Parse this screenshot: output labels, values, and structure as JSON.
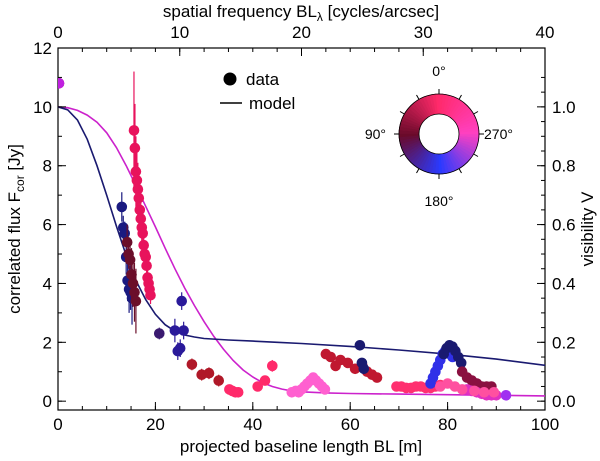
{
  "chart_data": {
    "type": "scatter",
    "x_bottom": {
      "label": "projected baseline length BL [m]",
      "range": [
        0,
        100
      ],
      "ticks": [
        0,
        20,
        40,
        60,
        80,
        100
      ],
      "tick_labels": [
        "0",
        "20",
        "40",
        "60",
        "80",
        "100"
      ]
    },
    "x_top": {
      "label_main": "spatial frequency BL",
      "label_sub": "λ",
      "label_tail": " [cycles/arcsec]",
      "range": [
        0,
        40
      ],
      "ticks": [
        0,
        10,
        20,
        30,
        40
      ],
      "tick_labels": [
        "0",
        "10",
        "20",
        "30",
        "40"
      ]
    },
    "y_left": {
      "label_main": "correlated flux F",
      "label_sub": "cor",
      "label_tail": " [Jy]",
      "range": [
        -0.3,
        12
      ],
      "ticks": [
        0,
        2,
        4,
        6,
        8,
        10,
        12
      ],
      "tick_labels": [
        "0",
        "2",
        "4",
        "6",
        "8",
        "10",
        "12"
      ]
    },
    "y_right": {
      "label": "visibility V",
      "range": [
        -0.03,
        1.2
      ],
      "ticks": [
        0,
        0.2,
        0.4,
        0.6,
        0.8,
        1.0
      ],
      "tick_labels": [
        "0.0",
        "0.2",
        "0.4",
        "0.6",
        "0.8",
        "1.0"
      ]
    },
    "legend": {
      "position": "top-center",
      "items": [
        {
          "label": "data",
          "kind": "marker"
        },
        {
          "label": "model",
          "kind": "line"
        }
      ]
    },
    "wheel": {
      "labels": [
        {
          "text": "0°",
          "angle": 0
        },
        {
          "text": "90°",
          "angle": 90
        },
        {
          "text": "180°",
          "angle": 180
        },
        {
          "text": "270°",
          "angle": 270
        }
      ],
      "colors_by_quadrant": [
        "#ff2a6a",
        "#6a0a2a",
        "#2a3aff",
        "#ff40c0"
      ]
    },
    "model_curves": [
      {
        "name": "model-magenta",
        "color": "#cc22cc",
        "x": [
          0,
          2,
          4,
          6,
          8,
          10,
          12,
          14,
          16,
          18,
          20,
          22,
          24,
          26,
          28,
          30,
          32,
          34,
          36,
          38,
          40,
          42,
          44,
          46,
          48,
          50,
          55,
          60,
          70,
          80,
          90,
          100
        ],
        "y": [
          10.0,
          9.97,
          9.88,
          9.72,
          9.48,
          9.12,
          8.62,
          8.0,
          7.32,
          6.62,
          5.92,
          5.2,
          4.5,
          3.85,
          3.25,
          2.7,
          2.2,
          1.76,
          1.38,
          1.06,
          0.82,
          0.63,
          0.5,
          0.41,
          0.35,
          0.32,
          0.28,
          0.26,
          0.24,
          0.22,
          0.2,
          0.18
        ]
      },
      {
        "name": "model-navy",
        "color": "#1a1a70",
        "x": [
          0,
          2,
          4,
          6,
          8,
          10,
          12,
          14,
          16,
          18,
          20,
          22,
          24,
          26,
          28,
          30,
          35,
          40,
          45,
          50,
          60,
          70,
          80,
          90,
          100
        ],
        "y": [
          10.0,
          9.9,
          9.55,
          8.9,
          8.0,
          7.0,
          5.95,
          4.95,
          4.1,
          3.45,
          2.95,
          2.6,
          2.38,
          2.25,
          2.18,
          2.13,
          2.08,
          2.04,
          2.0,
          1.96,
          1.86,
          1.74,
          1.6,
          1.43,
          1.22
        ]
      }
    ],
    "series": [
      {
        "name": "group-0",
        "color": "#9b1f5e",
        "x": [
          0.2
        ],
        "y": [
          10.8
        ],
        "err": [
          0
        ]
      },
      {
        "name": "group-1",
        "color": "#c020e0",
        "x": [
          0.2
        ],
        "y": [
          10.8
        ],
        "err": [
          0
        ]
      },
      {
        "name": "group-2",
        "color": "#1a1a80",
        "x": [
          13.1,
          13.4,
          13.7,
          14.0,
          14.3,
          14.6,
          14.9,
          15.2
        ],
        "y": [
          6.6,
          5.9,
          5.7,
          4.9,
          4.1,
          3.8,
          3.7,
          3.5
        ],
        "err": [
          0.5,
          0.4,
          0.4,
          0.6,
          0.7,
          0.8,
          0.6,
          0.9
        ]
      },
      {
        "name": "group-3",
        "color": "#6b0f2a",
        "x": [
          14.2,
          14.5,
          14.8,
          15.1,
          15.4,
          15.7,
          16.0
        ],
        "y": [
          5.4,
          5.0,
          4.8,
          4.3,
          4.0,
          3.7,
          3.4
        ],
        "err": [
          0.6,
          0.5,
          0.7,
          0.9,
          0.8,
          1.0,
          1.1
        ]
      },
      {
        "name": "group-4",
        "color": "#e8135c",
        "x": [
          15.6,
          15.8,
          16.0,
          16.2,
          16.4,
          16.6,
          16.8,
          17.0,
          17.2,
          17.4,
          17.6,
          17.8,
          18.0,
          18.2,
          18.4,
          18.6,
          18.8,
          19.0
        ],
        "y": [
          9.2,
          8.6,
          7.8,
          7.5,
          7.2,
          6.9,
          6.5,
          6.2,
          5.9,
          5.7,
          5.3,
          5.0,
          4.9,
          4.6,
          4.2,
          4.0,
          3.8,
          3.6
        ],
        "err": [
          2.0,
          1.5,
          1.2,
          1.0,
          0.9,
          0.8,
          0.6,
          0.6,
          0.5,
          0.5,
          0.4,
          0.4,
          0.4,
          0.3,
          0.3,
          0.3,
          0.3,
          0.3
        ]
      },
      {
        "name": "group-5",
        "color": "#2a1a9a",
        "x": [
          24.0,
          24.6,
          25.1,
          25.4,
          25.8
        ],
        "y": [
          2.4,
          1.7,
          1.8,
          3.4,
          2.4
        ],
        "err": [
          0.4,
          0.3,
          0.3,
          0.3,
          0.3
        ]
      },
      {
        "name": "group-6",
        "color": "#3a1a70",
        "x": [
          20.8
        ],
        "y": [
          2.3
        ],
        "err": [
          0.2
        ]
      },
      {
        "name": "group-7",
        "color": "#b01828",
        "x": [
          27.5,
          29.5,
          31.0,
          33.0
        ],
        "y": [
          1.25,
          0.9,
          0.95,
          0.7
        ],
        "err": [
          0.2,
          0.2,
          0.2,
          0.2
        ]
      },
      {
        "name": "group-8",
        "color": "#ff2a6a",
        "x": [
          35.2,
          35.8,
          36.4,
          37.0,
          44.0,
          42.5,
          41.0
        ],
        "y": [
          0.4,
          0.35,
          0.3,
          0.3,
          1.2,
          0.7,
          0.5
        ],
        "err": [
          0,
          0,
          0,
          0,
          0.2,
          0.1,
          0.1
        ]
      },
      {
        "name": "group-9",
        "color": "#ff60d0",
        "x": [
          48.0,
          48.8,
          49.4,
          50.0,
          50.6,
          51.2,
          51.8,
          52.4,
          53.0,
          53.6,
          54.2,
          54.8
        ],
        "y": [
          0.3,
          0.35,
          0.3,
          0.4,
          0.5,
          0.6,
          0.7,
          0.8,
          0.7,
          0.6,
          0.5,
          0.4
        ],
        "err": [
          0,
          0,
          0,
          0,
          0,
          0,
          0,
          0,
          0,
          0,
          0,
          0
        ]
      },
      {
        "name": "group-10",
        "color": "#c01830",
        "x": [
          55.0,
          56.0,
          57.0,
          58.0,
          59.5,
          61.0,
          62.5,
          63.5,
          64.5,
          65.5
        ],
        "y": [
          1.6,
          1.5,
          1.2,
          1.4,
          1.3,
          1.1,
          1.2,
          1.0,
          0.9,
          0.8
        ],
        "err": [
          0,
          0,
          0,
          0,
          0,
          0,
          0,
          0,
          0,
          0
        ]
      },
      {
        "name": "group-11",
        "color": "#1a1a70",
        "x": [
          62.0,
          62.4,
          62.8
        ],
        "y": [
          1.9,
          1.3,
          1.1
        ],
        "err": [
          0.1,
          0.1,
          0.1
        ]
      },
      {
        "name": "group-12",
        "color": "#ff3070",
        "x": [
          69.5,
          70.5,
          71.5,
          72.5,
          73.5,
          74.5,
          75.5,
          76.5,
          77.5,
          78.5
        ],
        "y": [
          0.5,
          0.5,
          0.45,
          0.45,
          0.5,
          0.5,
          0.45,
          0.45,
          0.5,
          0.55
        ],
        "err": [
          0,
          0,
          0,
          0,
          0,
          0,
          0,
          0,
          0,
          0
        ]
      },
      {
        "name": "group-13",
        "color": "#3030e8",
        "x": [
          76.5,
          77.0,
          77.5,
          78.0,
          78.5,
          79.0,
          79.5,
          80.0,
          80.5,
          81.0
        ],
        "y": [
          0.6,
          0.8,
          1.0,
          1.2,
          1.4,
          1.6,
          1.7,
          1.8,
          1.6,
          1.5
        ],
        "err": [
          0,
          0,
          0,
          0,
          0,
          0,
          0,
          0,
          0,
          0
        ]
      },
      {
        "name": "group-14",
        "color": "#1a1a70",
        "x": [
          79.2,
          79.8,
          80.4,
          81.0,
          81.6,
          82.2,
          82.8
        ],
        "y": [
          1.6,
          1.8,
          1.9,
          1.85,
          1.7,
          1.5,
          1.3
        ],
        "err": [
          0.1,
          0.1,
          0.1,
          0.1,
          0.1,
          0.1,
          0.1
        ]
      },
      {
        "name": "group-15",
        "color": "#8a1040",
        "x": [
          83.0,
          84.0,
          85.0,
          86.0,
          87.0,
          88.0,
          89.0
        ],
        "y": [
          1.0,
          0.8,
          0.7,
          0.6,
          0.5,
          0.5,
          0.5
        ],
        "err": [
          0,
          0,
          0,
          0,
          0,
          0,
          0
        ]
      },
      {
        "name": "group-16",
        "color": "#e030c0",
        "x": [
          84.0,
          85.0,
          86.0,
          87.0,
          88.0,
          89.0,
          90.0
        ],
        "y": [
          0.4,
          0.35,
          0.3,
          0.25,
          0.2,
          0.2,
          0.2
        ],
        "err": [
          0,
          0,
          0,
          0,
          0,
          0,
          0
        ]
      },
      {
        "name": "group-17",
        "color": "#ff50a0",
        "x": [
          78.5,
          80.0,
          81.5,
          83.0,
          85.5,
          87.5,
          89.5
        ],
        "y": [
          0.5,
          0.6,
          0.5,
          0.4,
          0.35,
          0.3,
          0.3
        ],
        "err": [
          0,
          0,
          0,
          0,
          0,
          0,
          0
        ]
      },
      {
        "name": "group-18",
        "color": "#a030f0",
        "x": [
          92.0
        ],
        "y": [
          0.2
        ],
        "err": [
          0
        ]
      }
    ]
  }
}
